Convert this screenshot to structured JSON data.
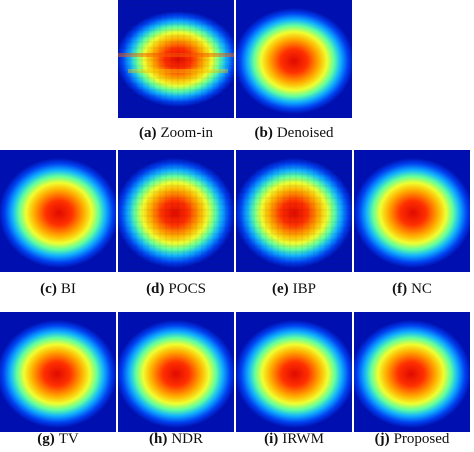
{
  "panels": [
    {
      "label": "(a)",
      "caption": "Zoom-in"
    },
    {
      "label": "(b)",
      "caption": "Denoised"
    },
    {
      "label": "(c)",
      "caption": "BI"
    },
    {
      "label": "(d)",
      "caption": "POCS"
    },
    {
      "label": "(e)",
      "caption": "IBP"
    },
    {
      "label": "(f)",
      "caption": "NC"
    },
    {
      "label": "(g)",
      "caption": "TV"
    },
    {
      "label": "(h)",
      "caption": "NDR"
    },
    {
      "label": "(i)",
      "caption": "IRWM"
    },
    {
      "label": "(j)",
      "caption": "Proposed"
    }
  ]
}
